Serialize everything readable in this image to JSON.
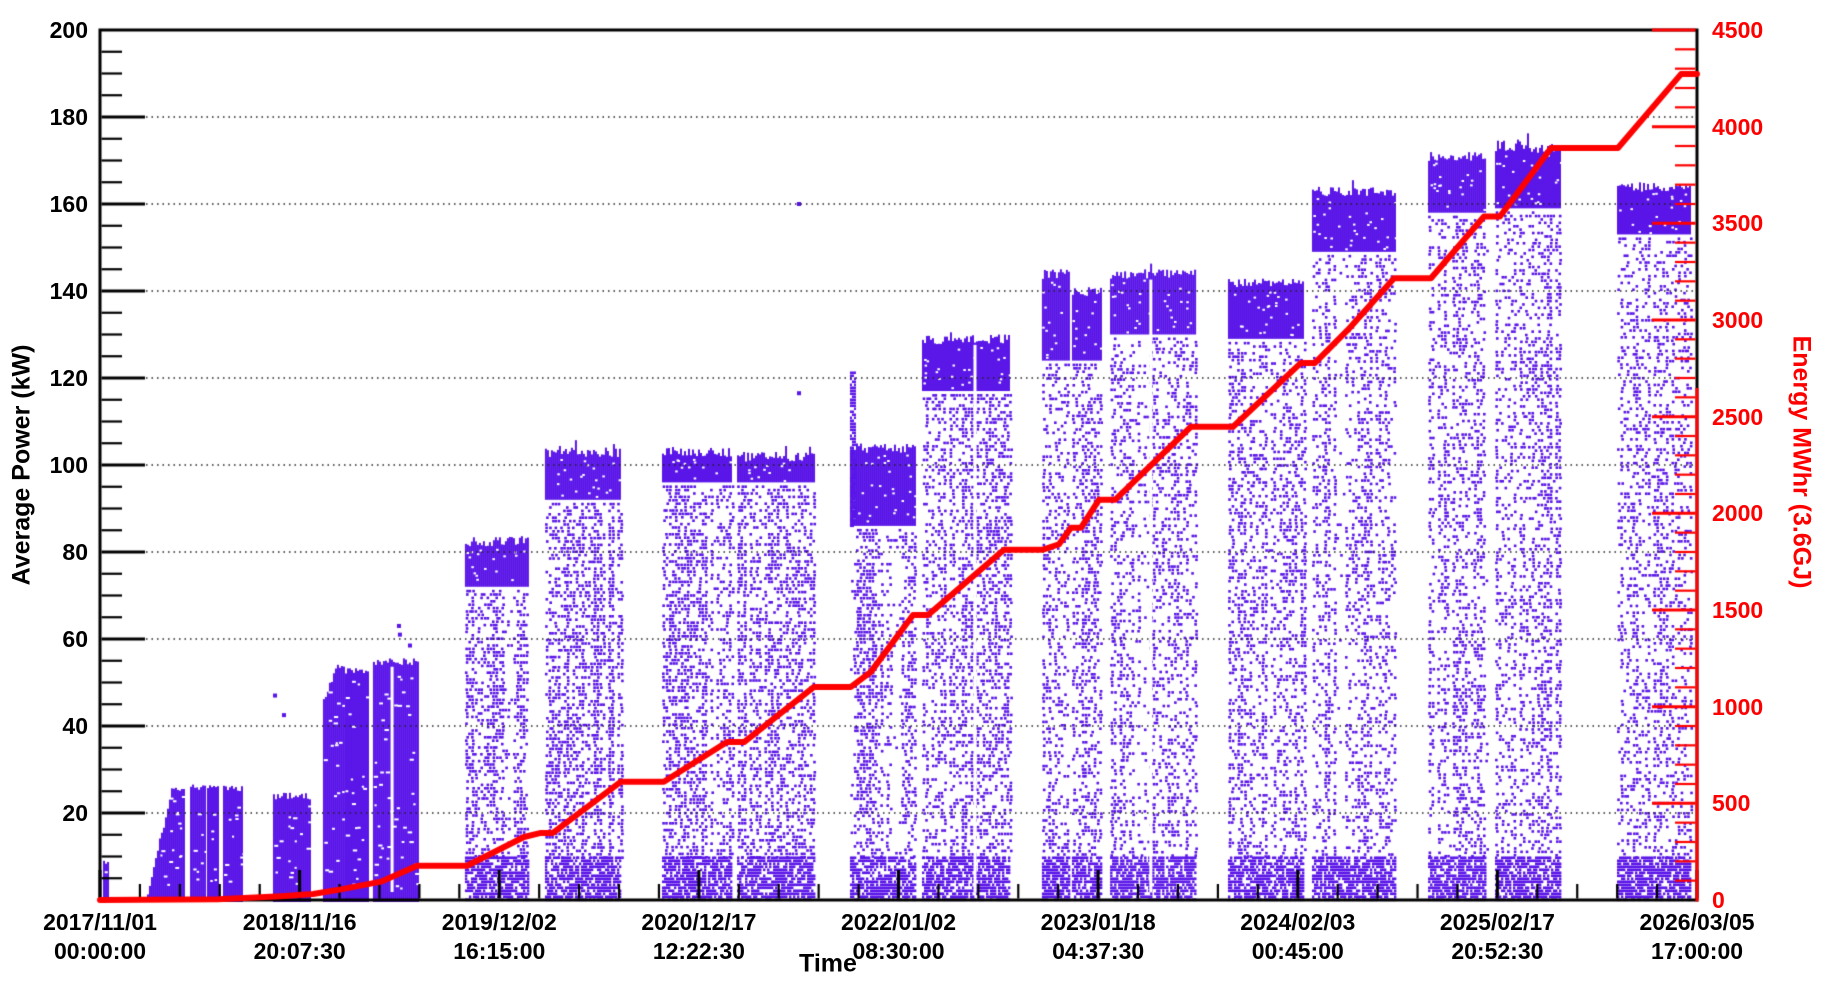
{
  "chart_data": {
    "type": "scatter",
    "title": "",
    "x_axis": {
      "label": "Time",
      "tick_labels": [
        [
          "2017/11/01",
          "00:00:00"
        ],
        [
          "2018/11/16",
          "20:07:30"
        ],
        [
          "2019/12/02",
          "16:15:00"
        ],
        [
          "2020/12/17",
          "12:22:30"
        ],
        [
          "2022/01/02",
          "08:30:00"
        ],
        [
          "2023/01/18",
          "04:37:30"
        ],
        [
          "2024/02/03",
          "00:45:00"
        ],
        [
          "2025/02/17",
          "20:52:30"
        ],
        [
          "2026/03/05",
          "17:00:00"
        ]
      ],
      "minor_divisions_per_interval": 5
    },
    "y_left_axis": {
      "label": "Average Power (kW)",
      "min": 0,
      "max": 200,
      "major_step": 20,
      "minor_step": 5,
      "tick_labels": [
        "20",
        "40",
        "60",
        "80",
        "100",
        "120",
        "140",
        "160",
        "180",
        "200"
      ],
      "color": "#000000"
    },
    "y_right_axis": {
      "label": "Energy MWhr (3.6GJ)",
      "min": 0,
      "max": 4500,
      "major_step": 500,
      "minor_step": 100,
      "tick_labels": [
        "0",
        "500",
        "1000",
        "1500",
        "2000",
        "2500",
        "3000",
        "3500",
        "4000",
        "4500"
      ],
      "color": "#ff0000"
    },
    "grid": {
      "horizontal_dotted": true,
      "at_kw": [
        20,
        40,
        60,
        80,
        100,
        120,
        140,
        160,
        180
      ]
    },
    "energy_line": {
      "name": "cumulative-energy",
      "color": "#ff0000",
      "points_frac_mwhr": [
        [
          0.0,
          0
        ],
        [
          0.0739,
          4
        ],
        [
          0.1133,
          20
        ],
        [
          0.1334,
          31
        ],
        [
          0.1509,
          55
        ],
        [
          0.1759,
          95
        ],
        [
          0.1985,
          177
        ],
        [
          0.2298,
          177
        ],
        [
          0.2655,
          326
        ],
        [
          0.2761,
          347
        ],
        [
          0.2836,
          347
        ],
        [
          0.3262,
          612
        ],
        [
          0.3531,
          612
        ],
        [
          0.3926,
          817
        ],
        [
          0.4033,
          817
        ],
        [
          0.4471,
          1102
        ],
        [
          0.4702,
          1102
        ],
        [
          0.4827,
          1180
        ],
        [
          0.5091,
          1474
        ],
        [
          0.5185,
          1474
        ],
        [
          0.566,
          1812
        ],
        [
          0.5905,
          1812
        ],
        [
          0.6005,
          1840
        ],
        [
          0.608,
          1926
        ],
        [
          0.6143,
          1926
        ],
        [
          0.6255,
          2070
        ],
        [
          0.6356,
          2070
        ],
        [
          0.6831,
          2448
        ],
        [
          0.7095,
          2448
        ],
        [
          0.752,
          2778
        ],
        [
          0.7608,
          2778
        ],
        [
          0.7815,
          2950
        ],
        [
          0.8103,
          3216
        ],
        [
          0.8334,
          3216
        ],
        [
          0.8666,
          3535
        ],
        [
          0.8766,
          3535
        ],
        [
          0.9086,
          3890
        ],
        [
          0.9505,
          3890
        ],
        [
          0.99,
          4272
        ],
        [
          1.0,
          4272
        ]
      ]
    },
    "power_scatter": {
      "name": "average-power-points",
      "marker_color": "#5a15e8",
      "bands": [
        {
          "f0": 0.0019,
          "f1": 0.005,
          "style": "solid",
          "top_kw": 9
        },
        {
          "f0": 0.0294,
          "f1": 0.052,
          "style": "solid",
          "top_kw": 26,
          "ramp_from_kw": 2
        },
        {
          "f0": 0.0564,
          "f1": 0.0657,
          "style": "solid",
          "top_kw": 26
        },
        {
          "f0": 0.067,
          "f1": 0.0733,
          "style": "solid",
          "top_kw": 26
        },
        {
          "f0": 0.077,
          "f1": 0.0895,
          "style": "solid",
          "top_kw": 26
        },
        {
          "f0": 0.1083,
          "f1": 0.1315,
          "style": "solid",
          "top_kw": 24
        },
        {
          "f0": 0.1396,
          "f1": 0.1522,
          "style": "solid",
          "top_kw": 54,
          "ramp_from_kw": 46
        },
        {
          "f0": 0.1534,
          "f1": 0.1672,
          "style": "solid",
          "top_kw": 53
        },
        {
          "f0": 0.1709,
          "f1": 0.1985,
          "style": "solid",
          "top_kw": 55,
          "spike_kw": 62,
          "gaps": [
            0.1829
          ]
        },
        {
          "f0": 0.2285,
          "f1": 0.2674,
          "style": "scatter",
          "top_kw": 82.5,
          "cap_bottom_kw": 72,
          "mid_density": 0.5,
          "spike_kw": 86
        },
        {
          "f0": 0.2786,
          "f1": 0.3256,
          "style": "scatter",
          "top_kw": 103,
          "cap_bottom_kw": 92,
          "mid_density": 0.5,
          "spike_kw": 106
        },
        {
          "f0": 0.3519,
          "f1": 0.3957,
          "style": "scatter",
          "top_kw": 103,
          "cap_bottom_kw": 96,
          "mid_density": 0.42,
          "spike_kw": 105
        },
        {
          "f0": 0.3989,
          "f1": 0.4465,
          "style": "scatter",
          "top_kw": 102,
          "cap_bottom_kw": 96,
          "mid_density": 0.42,
          "spike_kw": 105
        },
        {
          "f0": 0.4696,
          "f1": 0.5103,
          "style": "scatter",
          "top_kw": 104,
          "cap_bottom_kw": 86,
          "mid_density": 0.42,
          "spike_col": {
            "f0": 0.4696,
            "f1": 0.4728,
            "top_kw": 121.5
          }
        },
        {
          "f0": 0.5147,
          "f1": 0.5698,
          "style": "scatter",
          "top_kw": 129,
          "cap_bottom_kw": 117,
          "mid_density": 0.4,
          "spike_kw": 131,
          "gaps": [
            0.5479
          ]
        },
        {
          "f0": 0.5898,
          "f1": 0.6061,
          "style": "scatter",
          "top_kw": 144,
          "cap_bottom_kw": 124,
          "mid_density": 0.38
        },
        {
          "f0": 0.6086,
          "f1": 0.6262,
          "style": "scatter",
          "top_kw": 140,
          "cap_bottom_kw": 124,
          "mid_density": 0.38
        },
        {
          "f0": 0.6325,
          "f1": 0.6857,
          "style": "scatter",
          "top_kw": 144,
          "cap_bottom_kw": 130,
          "mid_density": 0.36,
          "spike_kw": 146.5,
          "gaps": [
            0.658
          ]
        },
        {
          "f0": 0.7063,
          "f1": 0.7533,
          "style": "scatter",
          "top_kw": 142,
          "cap_bottom_kw": 129,
          "mid_density": 0.36,
          "spike_kw": 145.5
        },
        {
          "f0": 0.7589,
          "f1": 0.8109,
          "style": "scatter",
          "top_kw": 163,
          "cap_bottom_kw": 149,
          "mid_density": 0.34,
          "spike_kw": 168.5
        },
        {
          "f0": 0.8316,
          "f1": 0.8673,
          "style": "scatter",
          "top_kw": 171,
          "cap_bottom_kw": 158,
          "mid_density": 0.34
        },
        {
          "f0": 0.8735,
          "f1": 0.9142,
          "style": "scatter",
          "top_kw": 173,
          "cap_bottom_kw": 159,
          "mid_density": 0.34,
          "spike_kw": 176.5
        },
        {
          "f0": 0.9499,
          "f1": 0.995,
          "style": "scatter",
          "top_kw": 164,
          "cap_bottom_kw": 153,
          "mid_density": 0.32
        }
      ],
      "bottom_strip": {
        "top_kw": 10,
        "density": 0.72
      },
      "outlier_points_frac_kw": [
        [
          0.1096,
          47
        ],
        [
          0.1152,
          42.5
        ],
        [
          0.1872,
          63
        ],
        [
          0.1878,
          61
        ],
        [
          0.1941,
          58.5
        ],
        [
          0.4377,
          160
        ],
        [
          0.4377,
          116.5
        ]
      ]
    },
    "colors": {
      "frame": "#000000",
      "grid": "#222222",
      "background": "#ffffff"
    }
  }
}
